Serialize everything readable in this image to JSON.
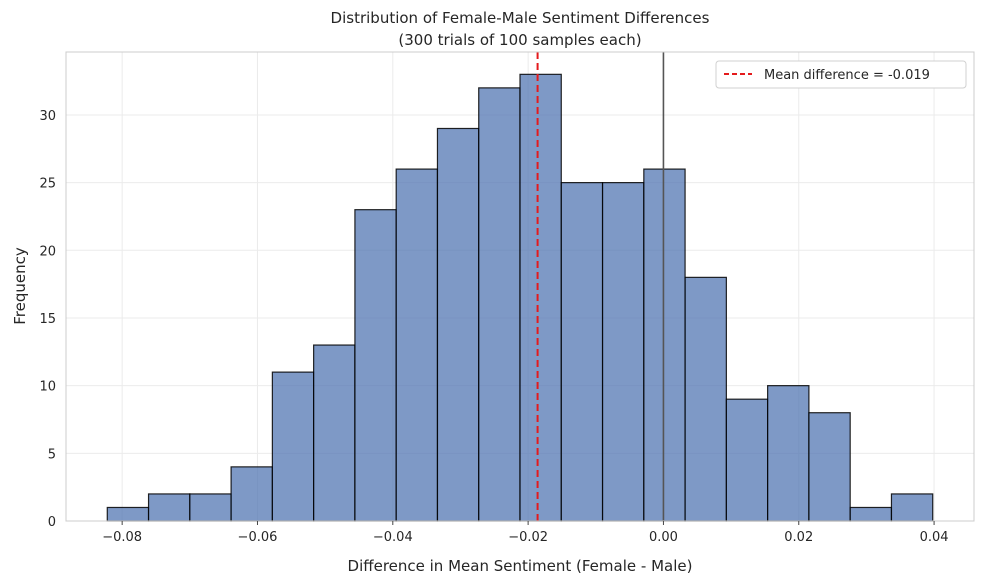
{
  "chart_data": {
    "type": "bar",
    "title_line1": "Distribution of Female-Male Sentiment Differences",
    "title_line2": "(300 trials of 100 samples each)",
    "xlabel": "Difference in Mean Sentiment (Female - Male)",
    "ylabel": "Frequency",
    "bin_edges": [
      -0.0822,
      -0.0761,
      -0.07,
      -0.0639,
      -0.0578,
      -0.0517,
      -0.0456,
      -0.0395,
      -0.0334,
      -0.0273,
      -0.0212,
      -0.0151,
      -0.009,
      -0.0029,
      0.0032,
      0.0093,
      0.0154,
      0.0215,
      0.0276,
      0.0337,
      0.0398
    ],
    "values": [
      1,
      2,
      2,
      4,
      11,
      13,
      23,
      26,
      29,
      32,
      33,
      25,
      25,
      26,
      18,
      9,
      10,
      8,
      1,
      2
    ],
    "xlim": [
      -0.0883,
      0.0459
    ],
    "ylim": [
      0,
      34.65
    ],
    "xticks": [
      -0.08,
      -0.06,
      -0.04,
      -0.02,
      0.0,
      0.02,
      0.04
    ],
    "xtick_labels": [
      "−0.08",
      "−0.06",
      "−0.04",
      "−0.02",
      "0.00",
      "0.02",
      "0.04"
    ],
    "yticks": [
      0,
      5,
      10,
      15,
      20,
      25,
      30
    ],
    "ytick_labels": [
      "0",
      "5",
      "10",
      "15",
      "20",
      "25",
      "30"
    ],
    "mean_line": {
      "x": -0.0186,
      "label": "Mean difference = -0.019",
      "color": "#e41a1c"
    },
    "zero_line": {
      "x": 0.0,
      "color": "#555555"
    },
    "bar_color": "#4c72b0",
    "bar_edge_color": "#000000",
    "grid": true,
    "legend_position": "upper right"
  }
}
